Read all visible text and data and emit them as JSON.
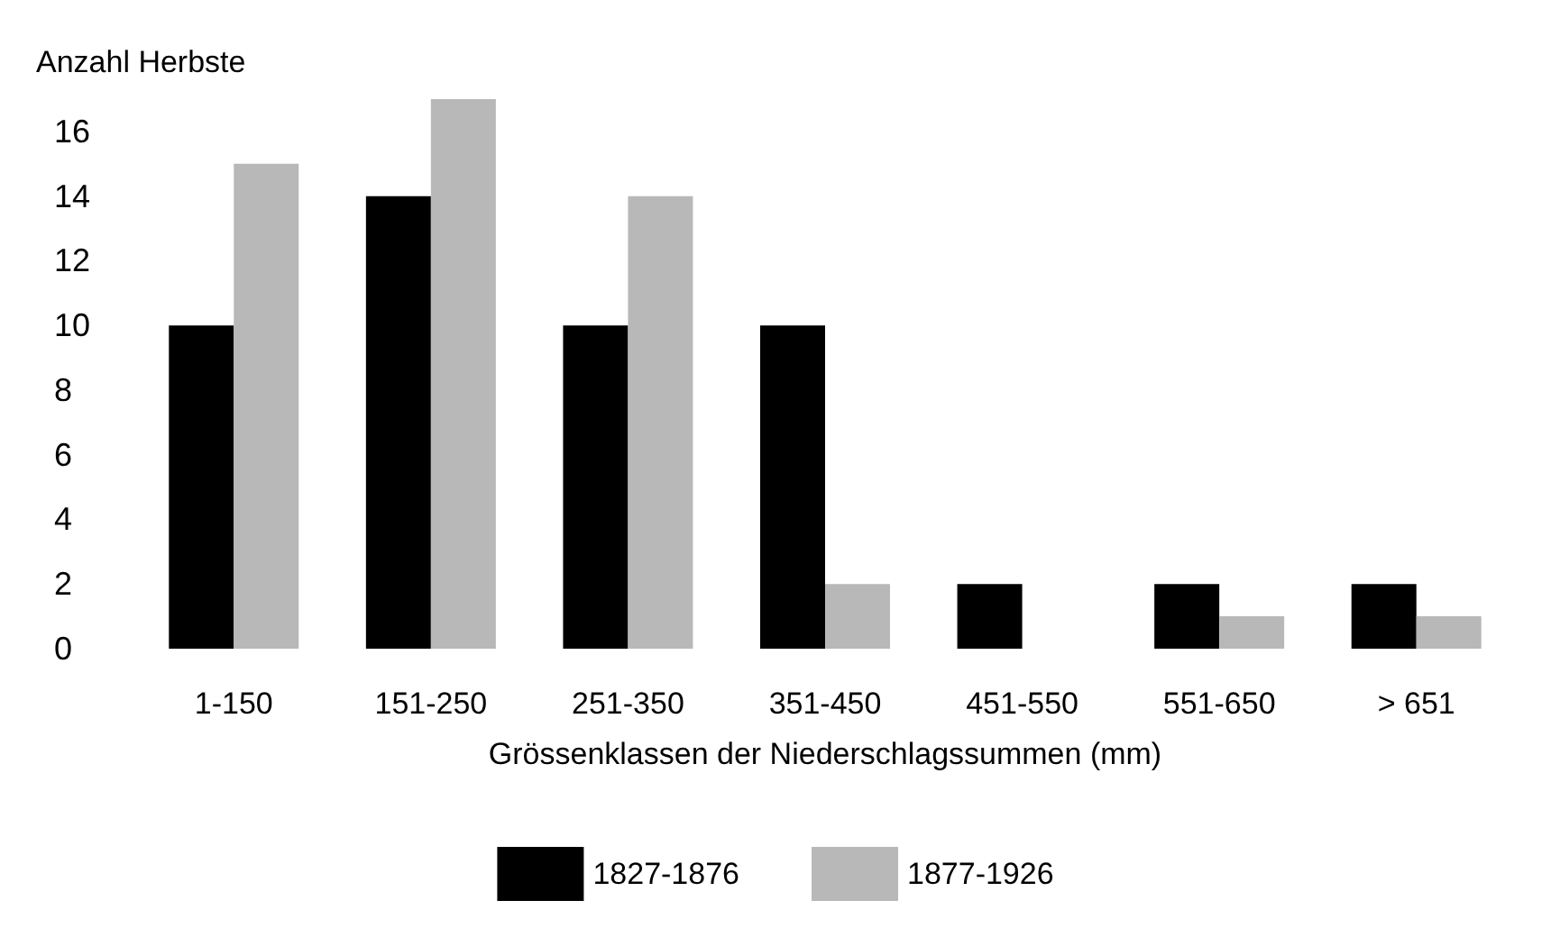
{
  "chart_data": {
    "type": "bar",
    "ylabel": "Anzahl Herbste",
    "xlabel": "Grössenklassen der Niederschlagssummen (mm)",
    "categories": [
      "1-150",
      "151-250",
      "251-350",
      "351-450",
      "451-550",
      "551-650",
      "> 651"
    ],
    "series": [
      {
        "name": "1827-1876",
        "color": "#000000",
        "values": [
          10,
          14,
          10,
          10,
          2,
          2,
          2
        ]
      },
      {
        "name": "1877-1926",
        "color": "#b8b8b8",
        "values": [
          15,
          17,
          14,
          2,
          0,
          1,
          1
        ]
      }
    ],
    "ylim": [
      0,
      17
    ],
    "yticks": [
      0,
      2,
      4,
      6,
      8,
      10,
      12,
      14,
      16
    ],
    "grid": false,
    "legend": "bottom"
  }
}
